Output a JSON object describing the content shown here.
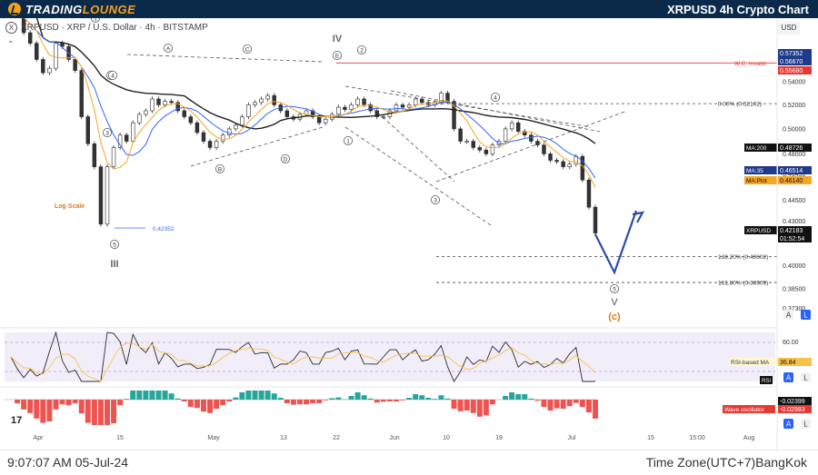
{
  "header": {
    "logo_text_a": "TRADING",
    "logo_text_b": "LOUNGE",
    "title": "XRPUSD 4h Crypto Chart"
  },
  "symbol_line": "XRPUSD · XRP / U.S. Dollar · 4h · BITSTAMP",
  "currency": "USD",
  "footer": {
    "clock": "9:07:07 AM 05-Jul-24",
    "timezone": "Time Zone(UTC+7)BangKok"
  },
  "colors": {
    "topbar": "#0b2a4a",
    "accent": "#f7a11a",
    "up": "#26a69a",
    "down": "#ef5350",
    "ma200": "#222222",
    "ma35": "#3366ff",
    "maplot": "#f5a623",
    "invalid": "#e53935",
    "rsi": "#2b2b2b",
    "rsi_ma": "#f5c24a",
    "wave_arrow": "#2c4da8"
  },
  "chart_data": {
    "type": "line",
    "title": "XRPUSD 4h Crypto Chart",
    "scale": "log",
    "scale_label": "Log Scale",
    "x_ticks": [
      "Apr",
      "15",
      "May",
      "13",
      "22",
      "Jun",
      "10",
      "19",
      "Jul",
      "15",
      "15:00",
      "Aug"
    ],
    "y_ticks": [
      0.54,
      0.52,
      0.5,
      0.48,
      0.4645,
      0.445,
      0.43,
      0.4,
      0.385,
      0.373
    ],
    "y_tick_labels": [
      "0.54000",
      "0.52000",
      "0.50000",
      "0.48000",
      "0.46450",
      "0.44500",
      "0.43000",
      "0.40000",
      "0.38500",
      "0.37300"
    ],
    "ylim": [
      0.37,
      0.585
    ],
    "price_close_series": [
      0.612,
      0.602,
      0.585,
      0.575,
      0.56,
      0.548,
      0.552,
      0.575,
      0.572,
      0.56,
      0.55,
      0.51,
      0.488,
      0.47,
      0.428,
      0.47,
      0.485,
      0.495,
      0.49,
      0.505,
      0.512,
      0.515,
      0.525,
      0.52,
      0.523,
      0.522,
      0.515,
      0.51,
      0.505,
      0.497,
      0.49,
      0.485,
      0.49,
      0.495,
      0.5,
      0.503,
      0.51,
      0.52,
      0.522,
      0.525,
      0.528,
      0.52,
      0.515,
      0.51,
      0.508,
      0.512,
      0.515,
      0.51,
      0.505,
      0.508,
      0.512,
      0.518,
      0.516,
      0.52,
      0.525,
      0.52,
      0.515,
      0.51,
      0.51,
      0.515,
      0.52,
      0.518,
      0.52,
      0.525,
      0.522,
      0.52,
      0.522,
      0.53,
      0.523,
      0.5,
      0.49,
      0.49,
      0.485,
      0.483,
      0.48,
      0.487,
      0.49,
      0.5,
      0.505,
      0.498,
      0.495,
      0.49,
      0.487,
      0.48,
      0.475,
      0.474,
      0.47,
      0.472,
      0.478,
      0.46,
      0.44,
      0.42183
    ],
    "series": [
      {
        "name": "MA:200",
        "last": 0.48726
      },
      {
        "name": "MA:35",
        "last": 0.46514
      },
      {
        "name": "MA:Plot",
        "last": 0.4614
      }
    ],
    "price_labels": [
      {
        "text": "0.57352",
        "value": 0.57352,
        "style": "blue"
      },
      {
        "text": "0.56670",
        "value": 0.5667,
        "style": "blue"
      },
      {
        "text": "0.55680",
        "value": 0.5568,
        "style": "red"
      },
      {
        "text": "0.48726",
        "value": 0.48726,
        "style": "black"
      },
      {
        "text": "0.46514",
        "value": 0.46514,
        "style": "blue"
      },
      {
        "text": "0.46140",
        "value": 0.4614,
        "style": "orange"
      },
      {
        "text": "0.42183",
        "value": 0.42183,
        "style": "dark"
      }
    ],
    "countdown": "01:52:54",
    "symbol_tag": "XRPUSD",
    "levels": [
      {
        "label": "W.C. Invalid",
        "value": 0.5568,
        "style": "red"
      },
      {
        "label": "0.00% (0.52102)",
        "value": 0.52102,
        "style": "dashed"
      },
      {
        "label": "138.20% (0.40602)",
        "value": 0.40602,
        "style": "dashed"
      },
      {
        "label": "161.80% (0.38909)",
        "value": 0.38909,
        "style": "dashed"
      }
    ],
    "low_annotation": "0.42352",
    "wave_labels": [
      "A",
      "C",
      "B",
      "D",
      "E",
      "1",
      "2",
      "3",
      "4",
      "5",
      "1",
      "2",
      "3",
      "4",
      "5",
      "III",
      "IV",
      "V",
      "(c)",
      "1",
      "2",
      "3",
      "4",
      "5"
    ],
    "rsi": {
      "name": "RSI",
      "ma_label": "RSI-based MA",
      "ma_value": "36.84",
      "tick_label": "60.00"
    },
    "wave_oscillator": {
      "name": "Wave oscillator",
      "value_a": "-0.02399",
      "value_b": "-0.02983"
    }
  }
}
